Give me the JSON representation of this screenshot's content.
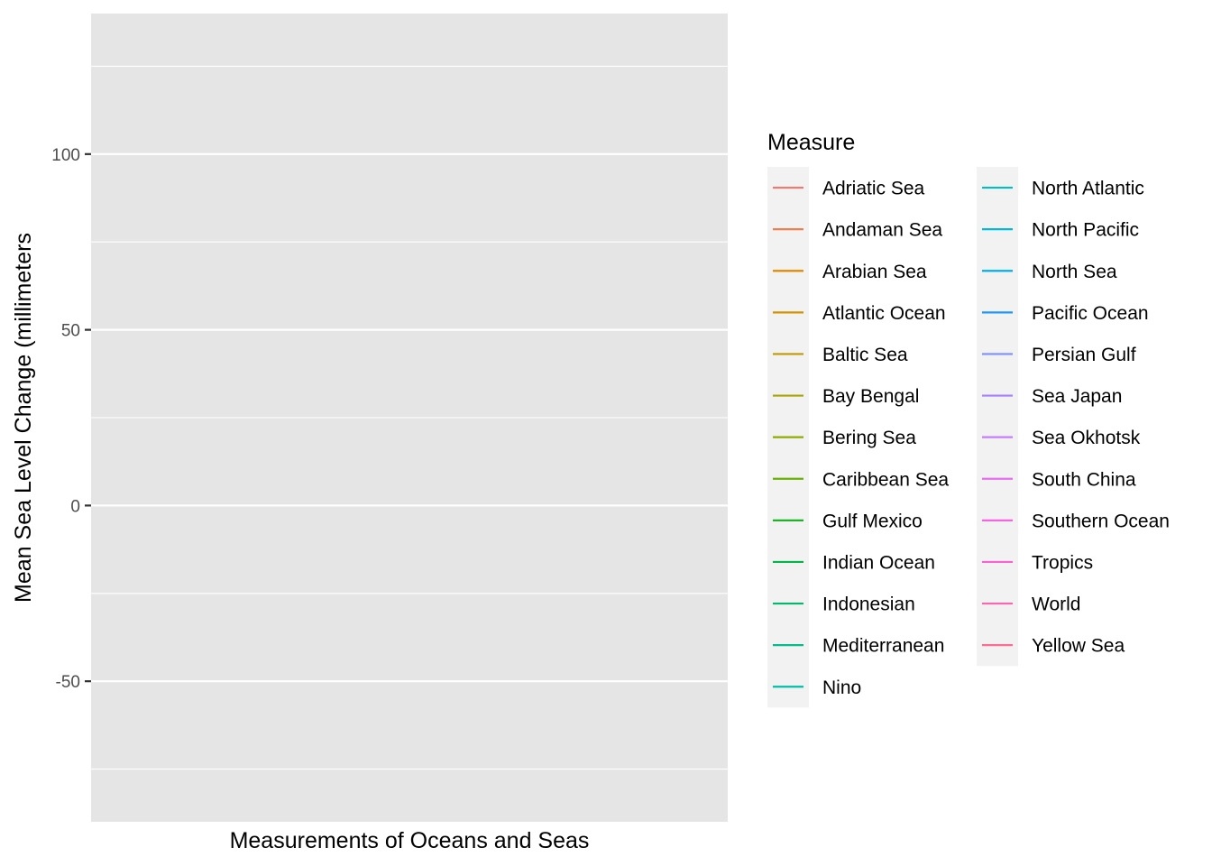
{
  "chart_data": {
    "type": "line",
    "title": "",
    "xlabel": "Measurements of Oceans and Seas",
    "ylabel": "Mean Sea Level Change (millimeters",
    "ylim": [
      -90,
      140
    ],
    "y_ticks": [
      -50,
      0,
      50,
      100
    ],
    "y_tick_labels": [
      "-50",
      "0",
      "50",
      "100"
    ],
    "grid": true,
    "legend_position": "right",
    "legend_title": "Measure",
    "series": [
      {
        "name": "Adriatic Sea",
        "color": "#F8766D",
        "values": []
      },
      {
        "name": "Andaman Sea",
        "color": "#F17E4F",
        "values": []
      },
      {
        "name": "Arabian Sea",
        "color": "#E38900",
        "values": []
      },
      {
        "name": "Atlantic Ocean",
        "color": "#D39200",
        "values": []
      },
      {
        "name": "Baltic Sea",
        "color": "#BF9A00",
        "values": []
      },
      {
        "name": "Bay Bengal",
        "color": "#A9A400",
        "values": []
      },
      {
        "name": "Bering Sea",
        "color": "#8EAB00",
        "values": []
      },
      {
        "name": "Caribbean Sea",
        "color": "#68B000",
        "values": []
      },
      {
        "name": "Gulf Mexico",
        "color": "#1FB425",
        "values": []
      },
      {
        "name": "Indian Ocean",
        "color": "#00B649",
        "values": []
      },
      {
        "name": "Indonesian",
        "color": "#00BA6E",
        "values": []
      },
      {
        "name": "Mediterranean",
        "color": "#00BD8E",
        "values": []
      },
      {
        "name": "Nino",
        "color": "#00BFAA",
        "values": []
      },
      {
        "name": "North Atlantic",
        "color": "#00BEC3",
        "values": []
      },
      {
        "name": "North Pacific",
        "color": "#00B8D9",
        "values": []
      },
      {
        "name": "North Sea",
        "color": "#00AFEB",
        "values": []
      },
      {
        "name": "Pacific Ocean",
        "color": "#1E97FB",
        "values": []
      },
      {
        "name": "Persian Gulf",
        "color": "#7F8FFF",
        "values": []
      },
      {
        "name": "Sea Japan",
        "color": "#A47FFF",
        "values": []
      },
      {
        "name": "Sea Okhotsk",
        "color": "#C77CFF",
        "values": []
      },
      {
        "name": "South China",
        "color": "#E76BF3",
        "values": []
      },
      {
        "name": "Southern Ocean",
        "color": "#F564E3",
        "values": []
      },
      {
        "name": "Tropics",
        "color": "#FD61D1",
        "values": []
      },
      {
        "name": "World",
        "color": "#FF64B0",
        "values": []
      },
      {
        "name": "Yellow Sea",
        "color": "#FF6C91",
        "values": []
      }
    ]
  },
  "theme": {
    "panel_background": "#E5E5E5",
    "grid_color": "#FFFFFF",
    "legend_key_background": "#F2F2F2",
    "tick_color": "#333333"
  }
}
